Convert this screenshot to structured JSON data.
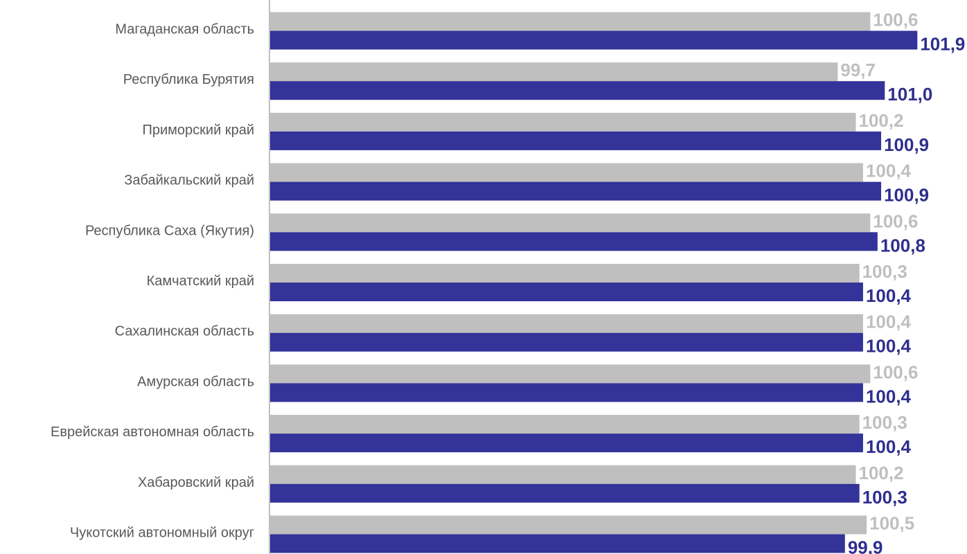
{
  "chart_data": {
    "type": "bar",
    "orientation": "horizontal",
    "categories": [
      "Магаданская область",
      "Республика Бурятия",
      "Приморский край",
      "Забайкальский край",
      "Республика Саха (Якутия)",
      "Камчатский край",
      "Сахалинская область",
      "Амурская область",
      "Еврейская автономная область",
      "Хабаровский край",
      "Чукотский автономный округ"
    ],
    "series": [
      {
        "color": "#bfbfbf",
        "label_color": "#bfbfbf",
        "values": [
          100.6,
          99.7,
          100.2,
          100.4,
          100.6,
          100.3,
          100.4,
          100.6,
          100.3,
          100.2,
          100.5
        ],
        "labels": [
          "100,6",
          "99,7",
          "100,2",
          "100,4",
          "100,6",
          "100,3",
          "100,4",
          "100,6",
          "100,3",
          "100,2",
          "100,5"
        ]
      },
      {
        "color": "#333399",
        "label_color": "#2e2e8f",
        "values": [
          101.9,
          101.0,
          100.9,
          100.9,
          100.8,
          100.4,
          100.4,
          100.4,
          100.4,
          100.3,
          99.9
        ],
        "labels": [
          "101,9",
          "101,0",
          "100,9",
          "100,9",
          "100,8",
          "100,4",
          "100,4",
          "100,4",
          "100,4",
          "100,3",
          "99,9"
        ]
      }
    ],
    "title": "",
    "xlabel": "",
    "ylabel": "",
    "xlim": [
      84,
      102.2
    ],
    "x_axis_visible": false,
    "grid": false,
    "legend": "none",
    "axis_color": "#bfbfbf"
  }
}
